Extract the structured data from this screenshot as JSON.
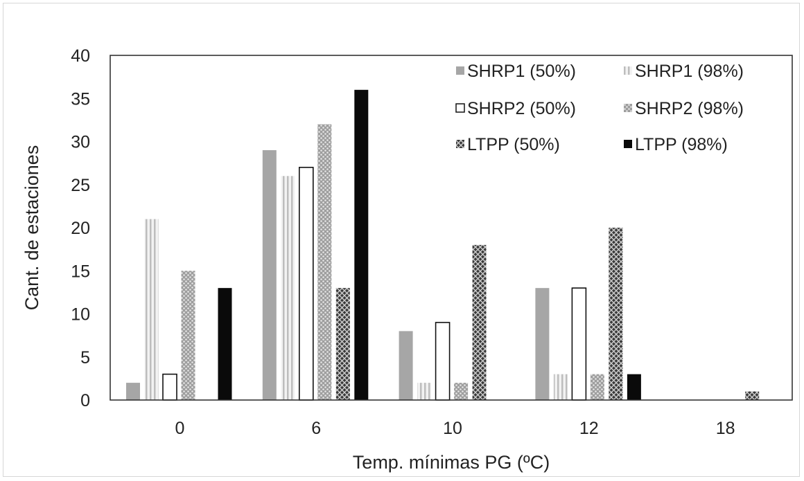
{
  "chart_data": {
    "type": "bar",
    "xlabel": "Temp. mínimas PG (ºC)",
    "ylabel": "Cant. de estaciones",
    "categories": [
      "0",
      "6",
      "10",
      "12",
      "18"
    ],
    "ylim": [
      0,
      40
    ],
    "yticks": [
      0,
      5,
      10,
      15,
      20,
      25,
      30,
      35,
      40
    ],
    "grid": false,
    "legend_position": "top-right",
    "series": [
      {
        "name": "SHRP1 (50%)",
        "values": [
          2,
          29,
          8,
          13,
          0
        ],
        "color": "#a6a6a6",
        "pattern": "solid-gray"
      },
      {
        "name": "SHRP1 (98%)",
        "values": [
          21,
          26,
          2,
          3,
          0
        ],
        "color": "#cfcfcf",
        "pattern": "vertical-stripes"
      },
      {
        "name": "SHRP2 (50%)",
        "values": [
          3,
          27,
          9,
          13,
          0
        ],
        "color": "#ffffff",
        "pattern": "outline"
      },
      {
        "name": "SHRP2 (98%)",
        "values": [
          15,
          32,
          2,
          3,
          0
        ],
        "color": "#b3b3b3",
        "pattern": "dots"
      },
      {
        "name": "LTPP (50%)",
        "values": [
          0,
          13,
          18,
          20,
          1
        ],
        "color": "#5a5a5a",
        "pattern": "crosshatch"
      },
      {
        "name": "LTPP (98%)",
        "values": [
          13,
          36,
          0,
          3,
          0
        ],
        "color": "#0a0a0a",
        "pattern": "solid-black"
      }
    ]
  }
}
